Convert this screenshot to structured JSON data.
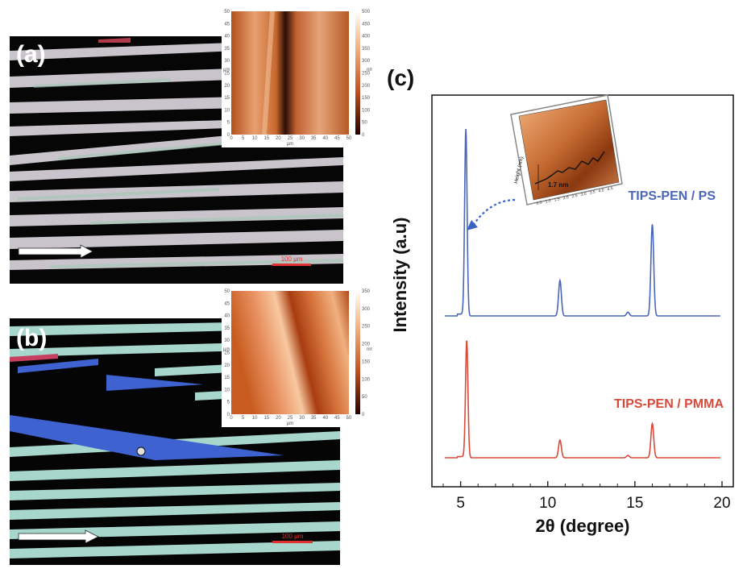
{
  "panels": {
    "a_label": "(a)",
    "b_label": "(b)",
    "c_label": "(c)",
    "a_scalebar": "100 μm",
    "b_scalebar": "100 μm"
  },
  "afm_a": {
    "x_unit": "μm",
    "y_unit": "μm",
    "cbar_unit": "nm",
    "x_ticks": [
      "0",
      "5",
      "10",
      "15",
      "20",
      "25",
      "30",
      "35",
      "40",
      "45",
      "50"
    ],
    "y_ticks": [
      "50",
      "45",
      "40",
      "35",
      "30",
      "25",
      "20",
      "15",
      "10",
      "5",
      "0"
    ],
    "cbar_ticks": [
      "500",
      "450",
      "400",
      "350",
      "300",
      "250",
      "200",
      "150",
      "100",
      "50",
      "0"
    ]
  },
  "afm_b": {
    "x_unit": "μm",
    "y_unit": "μm",
    "cbar_unit": "nm",
    "x_ticks": [
      "0",
      "5",
      "10",
      "15",
      "20",
      "25",
      "30",
      "35",
      "40",
      "45",
      "50"
    ],
    "y_ticks": [
      "50",
      "45",
      "40",
      "35",
      "30",
      "25",
      "20",
      "15",
      "10",
      "5",
      "0"
    ],
    "cbar_ticks": [
      "350",
      "300",
      "250",
      "200",
      "150",
      "100",
      "50",
      "0"
    ]
  },
  "inset": {
    "ylabel": "Height (nm)",
    "step_label": "1.7 nm",
    "x_ticks": [
      "0.5",
      "1.0",
      "1.5",
      "2.0",
      "2.5",
      "3.0",
      "3.5",
      "4.0",
      "4.5"
    ]
  },
  "colors": {
    "ps": "#4a66b8",
    "pmma": "#d84a3a",
    "arrow": "#3a64c4"
  },
  "chart_data": {
    "type": "line",
    "xlabel": "2θ (degree)",
    "ylabel": "Intensity (a.u)",
    "xlim": [
      4,
      20
    ],
    "x_ticks": [
      5,
      10,
      15,
      20
    ],
    "series": [
      {
        "name": "TIPS-PEN / PS",
        "peaks": [
          {
            "x": 5.3,
            "y": 1.0
          },
          {
            "x": 10.7,
            "y": 0.19
          },
          {
            "x": 14.6,
            "y": 0.02
          },
          {
            "x": 16.0,
            "y": 0.49
          }
        ]
      },
      {
        "name": "TIPS-PEN / PMMA",
        "peaks": [
          {
            "x": 5.35,
            "y": 1.0
          },
          {
            "x": 10.7,
            "y": 0.15
          },
          {
            "x": 14.6,
            "y": 0.02
          },
          {
            "x": 16.0,
            "y": 0.29
          }
        ]
      }
    ]
  }
}
